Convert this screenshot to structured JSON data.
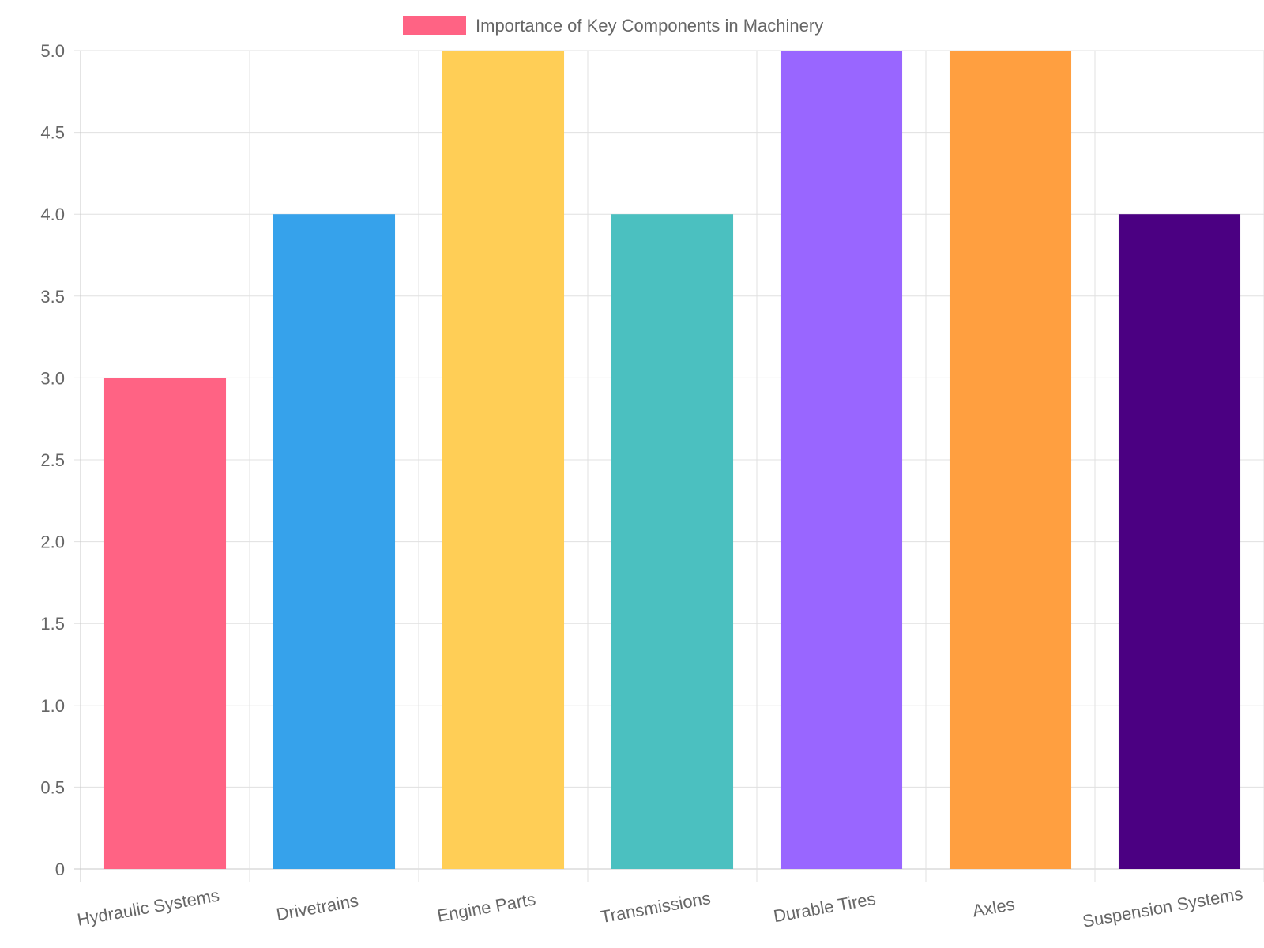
{
  "chart_data": {
    "type": "bar",
    "legend": {
      "label": "Importance of Key Components in Machinery",
      "color": "#FF6384",
      "position": "top"
    },
    "categories": [
      "Hydraulic Systems",
      "Drivetrains",
      "Engine Parts",
      "Transmissions",
      "Durable Tires",
      "Axles",
      "Suspension Systems"
    ],
    "series": [
      {
        "name": "Importance of Key Components in Machinery",
        "values": [
          3,
          4,
          5,
          4,
          5,
          5,
          4
        ],
        "colors": [
          "#FF6384",
          "#36A2EB",
          "#FFCE56",
          "#4BC0C0",
          "#9966FF",
          "#FF9F40",
          "#4B0082"
        ]
      }
    ],
    "ylim": [
      0,
      5
    ],
    "yticks": [
      "0",
      "0.5",
      "1.0",
      "1.5",
      "2.0",
      "2.5",
      "3.0",
      "3.5",
      "4.0",
      "4.5",
      "5.0"
    ],
    "ytick_values": [
      0,
      0.5,
      1,
      1.5,
      2,
      2.5,
      3,
      3.5,
      4,
      4.5,
      5
    ],
    "grid": true,
    "xlabel": "",
    "ylabel": ""
  }
}
